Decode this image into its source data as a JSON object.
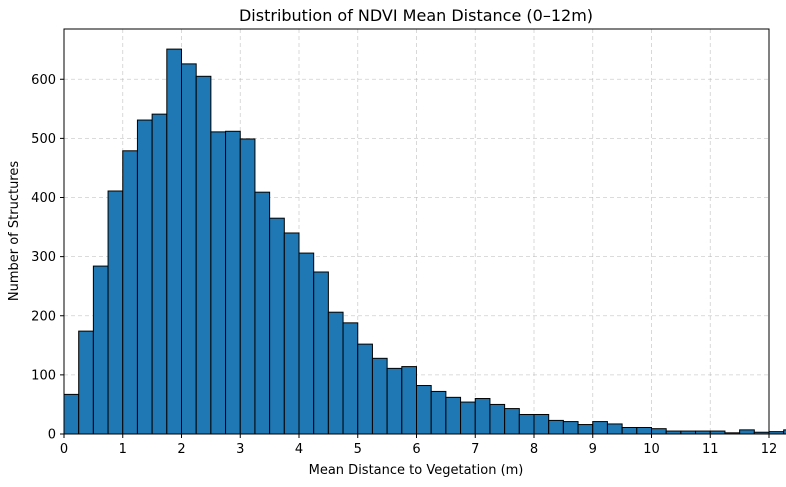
{
  "chart_data": {
    "type": "bar",
    "title": "Distribution of NDVI Mean Distance (0–12m)",
    "xlabel": "Mean Distance to Vegetation (m)",
    "ylabel": "Number of Structures",
    "xlim": [
      0,
      12
    ],
    "ylim": [
      0,
      685
    ],
    "xticks": [
      "0",
      "1",
      "2",
      "3",
      "4",
      "5",
      "6",
      "7",
      "8",
      "9",
      "10",
      "11",
      "12"
    ],
    "yticks": [
      "0",
      "100",
      "200",
      "300",
      "400",
      "500",
      "600"
    ],
    "grid": true,
    "bar_color": "#1f77b4",
    "bin_width": 0.25,
    "bin_start": 0,
    "values": [
      67,
      174,
      284,
      411,
      479,
      531,
      541,
      651,
      626,
      605,
      511,
      512,
      499,
      409,
      365,
      340,
      306,
      274,
      206,
      188,
      152,
      128,
      111,
      114,
      82,
      72,
      62,
      54,
      60,
      50,
      43,
      33,
      33,
      23,
      21,
      16,
      21,
      17,
      11,
      11,
      9,
      5,
      5,
      5,
      5,
      2,
      7,
      3,
      4,
      7
    ]
  }
}
